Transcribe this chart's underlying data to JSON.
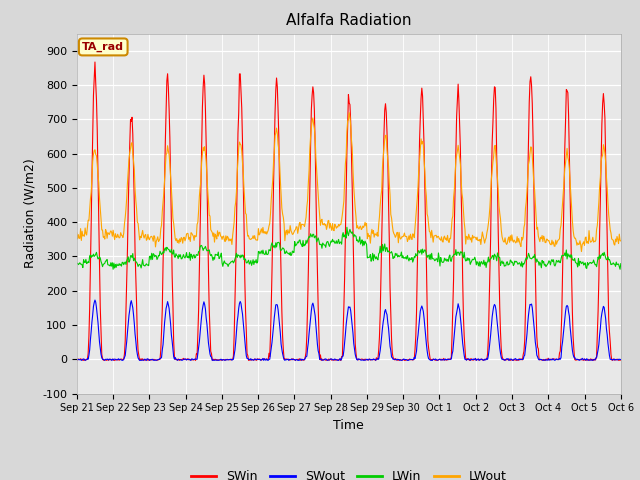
{
  "title": "Alfalfa Radiation",
  "xlabel": "Time",
  "ylabel": "Radiation (W/m2)",
  "ylim": [
    -100,
    950
  ],
  "yticks": [
    -100,
    0,
    100,
    200,
    300,
    400,
    500,
    600,
    700,
    800,
    900
  ],
  "colors": {
    "SWin": "#ff0000",
    "SWout": "#0000ff",
    "LWin": "#00cc00",
    "LWout": "#ffa500"
  },
  "fig_facecolor": "#d8d8d8",
  "plot_facecolor": "#e8e8e8",
  "annotation_box": {
    "text": "TA_rad",
    "facecolor": "#ffffcc",
    "edgecolor": "#cc8800",
    "textcolor": "#990000"
  },
  "legend_entries": [
    "SWin",
    "SWout",
    "LWin",
    "LWout"
  ],
  "n_days": 15,
  "xtick_labels": [
    "Sep 21",
    "Sep 22",
    "Sep 23",
    "Sep 24",
    "Sep 25",
    "Sep 26",
    "Sep 27",
    "Sep 28",
    "Sep 29",
    "Sep 30",
    "Oct 1",
    "Oct 2",
    "Oct 3",
    "Oct 4",
    "Oct 5",
    "Oct 6"
  ],
  "SWin_peaks": [
    840,
    710,
    820,
    825,
    830,
    820,
    800,
    780,
    750,
    800,
    795,
    795,
    820,
    795,
    765
  ],
  "SWout_peaks": [
    185,
    183,
    180,
    182,
    180,
    175,
    172,
    170,
    155,
    168,
    170,
    172,
    180,
    170,
    165
  ],
  "LWin_base": [
    280,
    275,
    300,
    300,
    280,
    310,
    335,
    345,
    300,
    295,
    290,
    280,
    278,
    282,
    278
  ],
  "LWout_base": [
    365,
    360,
    350,
    358,
    352,
    372,
    392,
    388,
    362,
    358,
    352,
    348,
    346,
    340,
    348
  ],
  "LWout_peak_extra": [
    140,
    160,
    155,
    155,
    175,
    195,
    205,
    215,
    175,
    170,
    160,
    155,
    155,
    150,
    165
  ]
}
